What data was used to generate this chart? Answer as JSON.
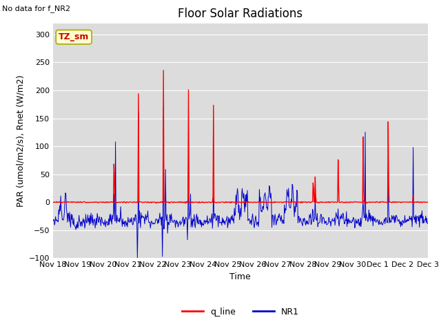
{
  "title": "Floor Solar Radiations",
  "top_left_text": "No data for f_NR2",
  "xlabel": "Time",
  "ylabel": "PAR (umol/m2/s), Rnet (W/m2)",
  "ylim": [
    -100,
    320
  ],
  "yticks": [
    -100,
    -50,
    0,
    50,
    100,
    150,
    200,
    250,
    300
  ],
  "xtick_labels": [
    "Nov 18",
    "Nov 19",
    "Nov 20",
    "Nov 21",
    "Nov 22",
    "Nov 23",
    "Nov 24",
    "Nov 25",
    "Nov 26",
    "Nov 27",
    "Nov 28",
    "Nov 29",
    "Nov 30",
    "Dec 1",
    "Dec 2",
    "Dec 3"
  ],
  "legend_entries": [
    "q_line",
    "NR1"
  ],
  "legend_colors": [
    "#ff0000",
    "#0000cc"
  ],
  "tz_sm_label": "TZ_sm",
  "background_color": "#dcdcdc",
  "figure_background": "#ffffff",
  "title_fontsize": 12,
  "label_fontsize": 9,
  "tick_fontsize": 8
}
